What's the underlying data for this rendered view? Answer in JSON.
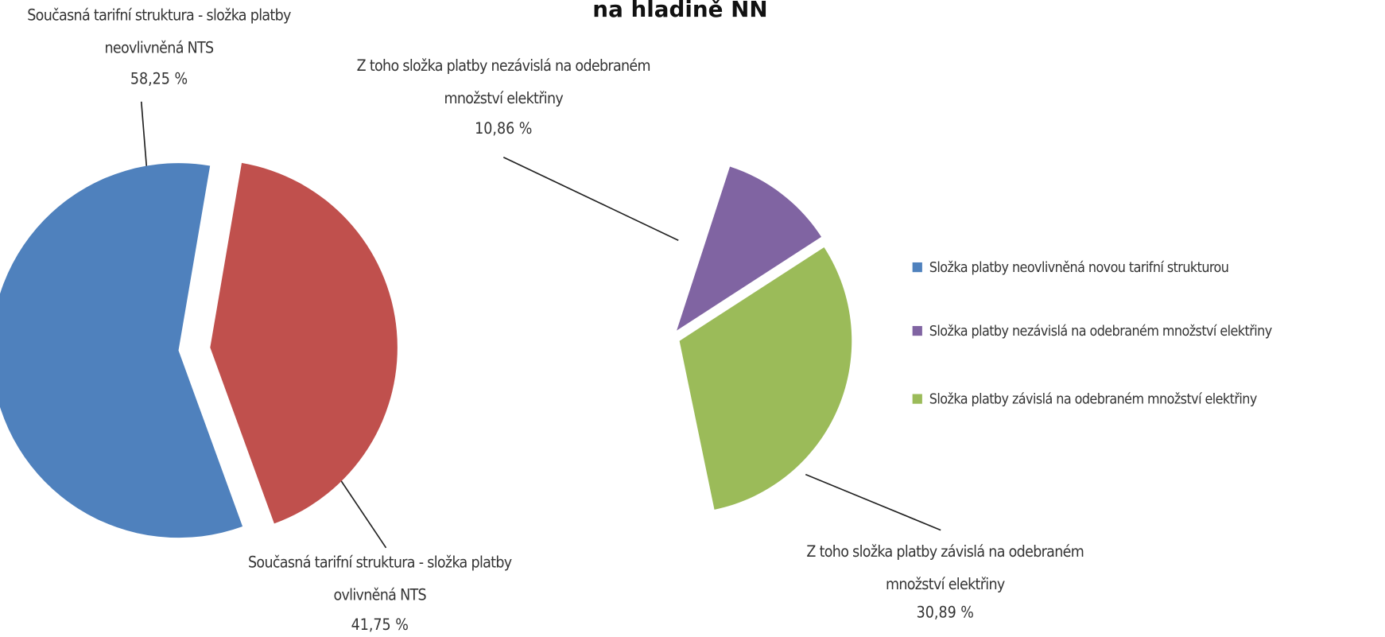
{
  "title": "na hladině NN",
  "chart_data": [
    {
      "type": "pie",
      "categories": [
        "Současná tarifní struktura - složka platby neovlivněná NTS",
        "Současná tarifní struktura - složka platby ovlivněná NTS"
      ],
      "values": [
        58.25,
        41.75
      ],
      "value_labels": [
        "58,25 %",
        "41,75 %"
      ],
      "colors": [
        "#4f81bd",
        "#c0504d"
      ]
    },
    {
      "type": "pie",
      "categories": [
        "Z toho složka platby nezávislá na odebraném množství elektřiny",
        "Z toho složka platby závislá na odebraném množství elektřiny"
      ],
      "values": [
        10.86,
        30.89
      ],
      "value_labels": [
        "10,86 %",
        "30,89 %"
      ],
      "colors": [
        "#8064a2",
        "#9bbb59"
      ]
    }
  ],
  "legend": [
    {
      "name": "Složka platby neovlivněná novou tarifní strukturou",
      "color": "#4f81bd"
    },
    {
      "name": "Složka platby nezávislá na odebraném množství elektřiny",
      "color": "#8064a2"
    },
    {
      "name": "Složka platby závislá na odebraném množství elektřiny",
      "color": "#9bbb59"
    }
  ]
}
